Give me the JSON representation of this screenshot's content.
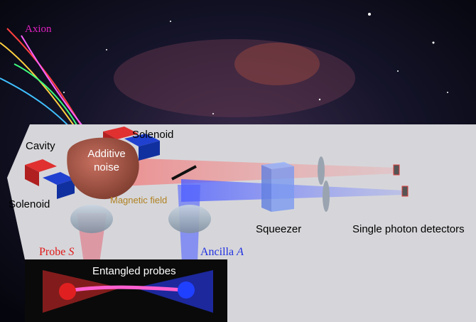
{
  "labels": {
    "axion": "Axion",
    "solenoid_top": "Solenoid",
    "cavity": "Cavity",
    "additive_noise": [
      "Additive",
      "noise"
    ],
    "solenoid_left": "Solenoid",
    "magnetic_field": "Magnetic field",
    "squeezer": "Squeezer",
    "detectors": "Single photon detectors",
    "probe": {
      "text": "Probe",
      "symbol": "S"
    },
    "ancilla": {
      "text": "Ancilla",
      "symbol": "A"
    },
    "entangled_probes": "Entangled probes"
  }
}
